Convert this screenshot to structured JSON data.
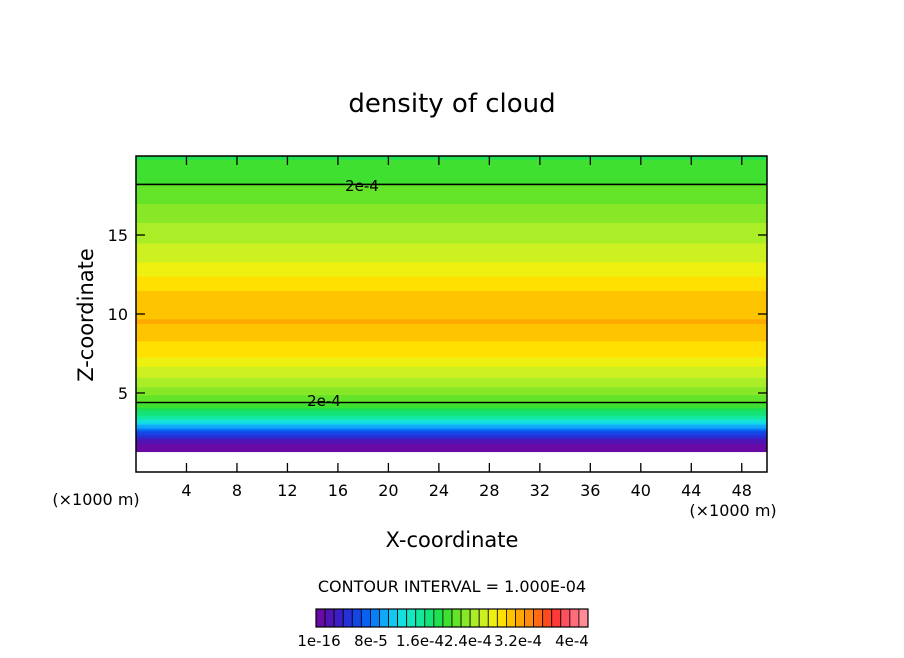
{
  "chart_data": {
    "type": "heatmap",
    "title": "density of cloud",
    "xlabel": "X-coordinate",
    "ylabel": "Z-coordinate",
    "x_unit": "(×1000 m)",
    "z_unit": "(×1000 m)",
    "xlim": [
      0,
      50
    ],
    "ylim": [
      0,
      20
    ],
    "x_ticks": [
      4,
      8,
      12,
      16,
      20,
      24,
      28,
      32,
      36,
      40,
      44,
      48
    ],
    "y_ticks": [
      5,
      10,
      15
    ],
    "contour_interval_text": "CONTOUR INTERVAL = 1.000E-04",
    "contour_level_label": "2e-4",
    "contour_levels": [
      0.0002
    ],
    "colorbar_labels": [
      "1e-16",
      "8e-5",
      "1.6e-4",
      "2.4e-4",
      "3.2e-4",
      "4e-4"
    ],
    "colorbar_values": [
      1e-16,
      8e-05,
      0.00016,
      0.00024,
      0.00032,
      0.0004
    ],
    "colorbar_colors": [
      "#6a0aa5",
      "#5014b4",
      "#3a20c4",
      "#2432d8",
      "#1446e6",
      "#0a60f0",
      "#0a80f8",
      "#10a8f8",
      "#12c8f0",
      "#14e0e0",
      "#14e8c0",
      "#14e89c",
      "#14e478",
      "#20e050",
      "#40e030",
      "#64e428",
      "#88e828",
      "#aaee28",
      "#ccf020",
      "#eef010",
      "#ffe000",
      "#ffc400",
      "#ffa800",
      "#ff8c10",
      "#ff6a14",
      "#ff4a20",
      "#ff3838",
      "#ff5060",
      "#ff6c7c",
      "#ff8c96"
    ],
    "field_profile": [
      {
        "z": 1.3,
        "value": 0.0
      },
      {
        "z": 2.0,
        "value": 2e-05
      },
      {
        "z": 2.6,
        "value": 7e-05
      },
      {
        "z": 3.1,
        "value": 0.00012
      },
      {
        "z": 3.6,
        "value": 0.00016
      },
      {
        "z": 4.4,
        "value": 0.0002
      },
      {
        "z": 5.5,
        "value": 0.00023
      },
      {
        "z": 7.5,
        "value": 0.00027
      },
      {
        "z": 9.5,
        "value": 0.000295
      },
      {
        "z": 11.5,
        "value": 0.00028
      },
      {
        "z": 13.5,
        "value": 0.00025
      },
      {
        "z": 16.0,
        "value": 0.000225
      },
      {
        "z": 18.2,
        "value": 0.0002
      },
      {
        "z": 20.0,
        "value": 0.000185
      }
    ]
  }
}
